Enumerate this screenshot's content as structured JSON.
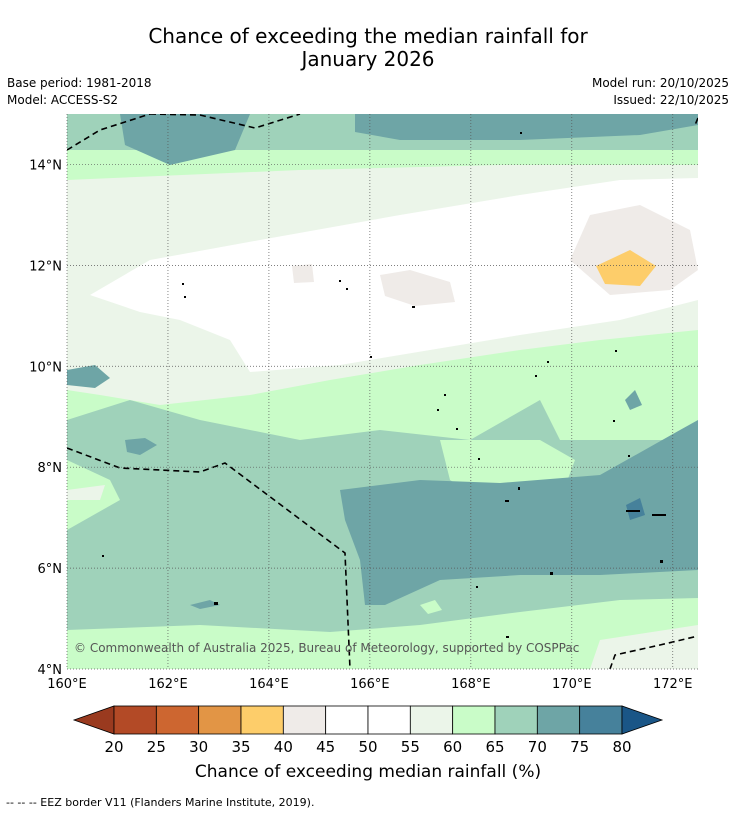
{
  "header": {
    "title_line1": "Chance of exceeding the median rainfall for",
    "title_line2": "January 2026",
    "base_period": "Base period: 1981-2018",
    "model": "Model: ACCESS-S2",
    "model_run": "Model run: 20/10/2025",
    "issued": "Issued: 22/10/2025"
  },
  "chart_data": {
    "type": "heatmap",
    "title": "Chance of exceeding the median rainfall for January 2026",
    "x_range": [
      160,
      172.5
    ],
    "y_range": [
      4,
      15
    ],
    "x_ticks": [
      160,
      162,
      164,
      166,
      168,
      170,
      172
    ],
    "y_ticks": [
      4,
      6,
      8,
      10,
      12,
      14
    ],
    "x_tick_labels": [
      "160°E",
      "162°E",
      "164°E",
      "166°E",
      "168°E",
      "170°E",
      "172°E"
    ],
    "y_tick_labels": [
      "4°N",
      "6°N",
      "8°N",
      "10°N",
      "12°N",
      "14°N"
    ],
    "grid": true,
    "colorbar": {
      "label": "Chance of exceeding median rainfall (%)",
      "ticks": [
        20,
        25,
        30,
        35,
        40,
        45,
        50,
        55,
        60,
        65,
        70,
        75,
        80
      ],
      "colors": [
        "#9a3a1f",
        "#b34a26",
        "#cd6630",
        "#e29545",
        "#fdcd6a",
        "#efebe8",
        "#ffffff",
        "#ffffff",
        "#ebf5e9",
        "#c9fcc8",
        "#9fd2ba",
        "#6ea5a6",
        "#46819b",
        "#1a5687"
      ]
    },
    "contour_bands": {
      "75-80": "#46819b",
      "70-75": "#6ea5a6",
      "65-70": "#9fd2ba",
      "60-65": "#c9fcc8",
      "55-60": "#ebf5e9",
      "45-55": "#ffffff",
      "40-45": "#efebe8",
      "35-40": "#fdcd6a"
    },
    "approx_field": [
      {
        "region": "north edge 14-15°N",
        "band": "70-75"
      },
      {
        "region": "13-14°N",
        "band": "65-70"
      },
      {
        "region": "10.5-13°N",
        "band": "45-55"
      },
      {
        "region": "near 171.5°E 12°N",
        "band": "35-40"
      },
      {
        "region": "9.5-10.5°N",
        "band": "55-60"
      },
      {
        "region": "8-9.5°N",
        "band": "60-65"
      },
      {
        "region": "6-8°N east",
        "band": "70-75"
      },
      {
        "region": "4-6°N",
        "band": "65-70"
      }
    ],
    "copyright": "© Commonwealth of Australia 2025, Bureau of Meteorology, supported by COSPPac"
  },
  "footnote": "--  --  -- EEZ border V11 (Flanders Marine Institute, 2019)."
}
